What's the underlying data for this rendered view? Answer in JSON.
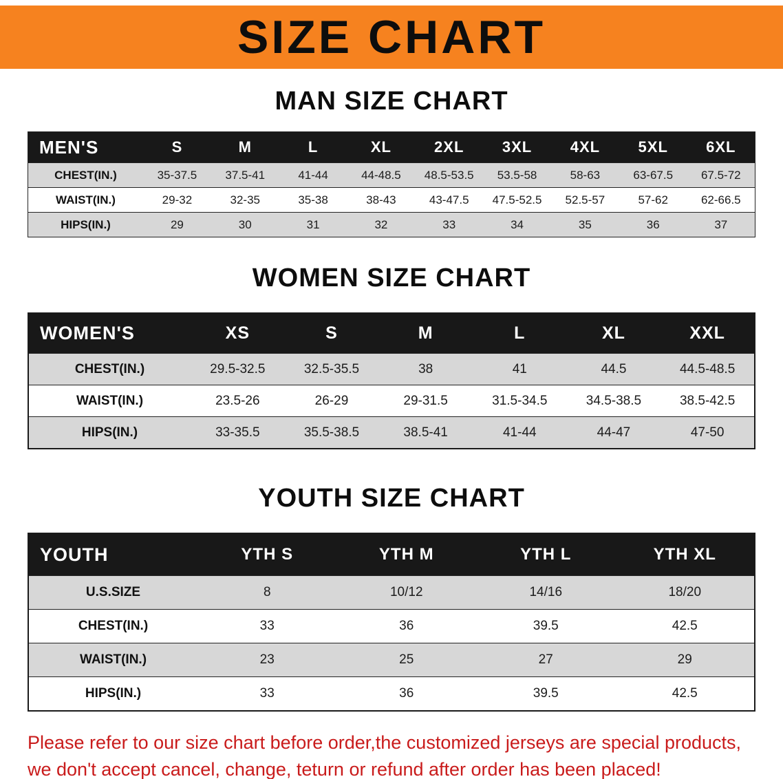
{
  "banner": {
    "title": "SIZE CHART"
  },
  "colors": {
    "banner_orange": "#F6821F",
    "table_header_black": "#181818",
    "row_gray": "#D7D7D7",
    "footer_red": "#C91B1B"
  },
  "chart_data": [
    {
      "type": "table",
      "title": "MAN SIZE CHART",
      "header": [
        "MEN'S",
        "S",
        "M",
        "L",
        "XL",
        "2XL",
        "3XL",
        "4XL",
        "5XL",
        "6XL"
      ],
      "rows": [
        [
          "CHEST(IN.)",
          "35-37.5",
          "37.5-41",
          "41-44",
          "44-48.5",
          "48.5-53.5",
          "53.5-58",
          "58-63",
          "63-67.5",
          "67.5-72"
        ],
        [
          "WAIST(IN.)",
          "29-32",
          "32-35",
          "35-38",
          "38-43",
          "43-47.5",
          "47.5-52.5",
          "52.5-57",
          "57-62",
          "62-66.5"
        ],
        [
          "HIPS(IN.)",
          "29",
          "30",
          "31",
          "32",
          "33",
          "34",
          "35",
          "36",
          "37"
        ]
      ]
    },
    {
      "type": "table",
      "title": "WOMEN SIZE CHART",
      "header": [
        "WOMEN'S",
        "XS",
        "S",
        "M",
        "L",
        "XL",
        "XXL"
      ],
      "rows": [
        [
          "CHEST(IN.)",
          "29.5-32.5",
          "32.5-35.5",
          "38",
          "41",
          "44.5",
          "44.5-48.5"
        ],
        [
          "WAIST(IN.)",
          "23.5-26",
          "26-29",
          "29-31.5",
          "31.5-34.5",
          "34.5-38.5",
          "38.5-42.5"
        ],
        [
          "HIPS(IN.)",
          "33-35.5",
          "35.5-38.5",
          "38.5-41",
          "41-44",
          "44-47",
          "47-50"
        ]
      ]
    },
    {
      "type": "table",
      "title": "YOUTH SIZE CHART",
      "header": [
        "YOUTH",
        "YTH S",
        "YTH M",
        "YTH L",
        "YTH XL"
      ],
      "rows": [
        [
          "U.S.SIZE",
          "8",
          "10/12",
          "14/16",
          "18/20"
        ],
        [
          "CHEST(IN.)",
          "33",
          "36",
          "39.5",
          "42.5"
        ],
        [
          "WAIST(IN.)",
          "23",
          "25",
          "27",
          "29"
        ],
        [
          "HIPS(IN.)",
          "33",
          "36",
          "39.5",
          "42.5"
        ]
      ]
    }
  ],
  "footer": {
    "line1": "Please refer to our size chart before order,the customized jerseys are special products,",
    "line2": "we don't accept cancel, change, teturn or refund after order has been placed!"
  }
}
